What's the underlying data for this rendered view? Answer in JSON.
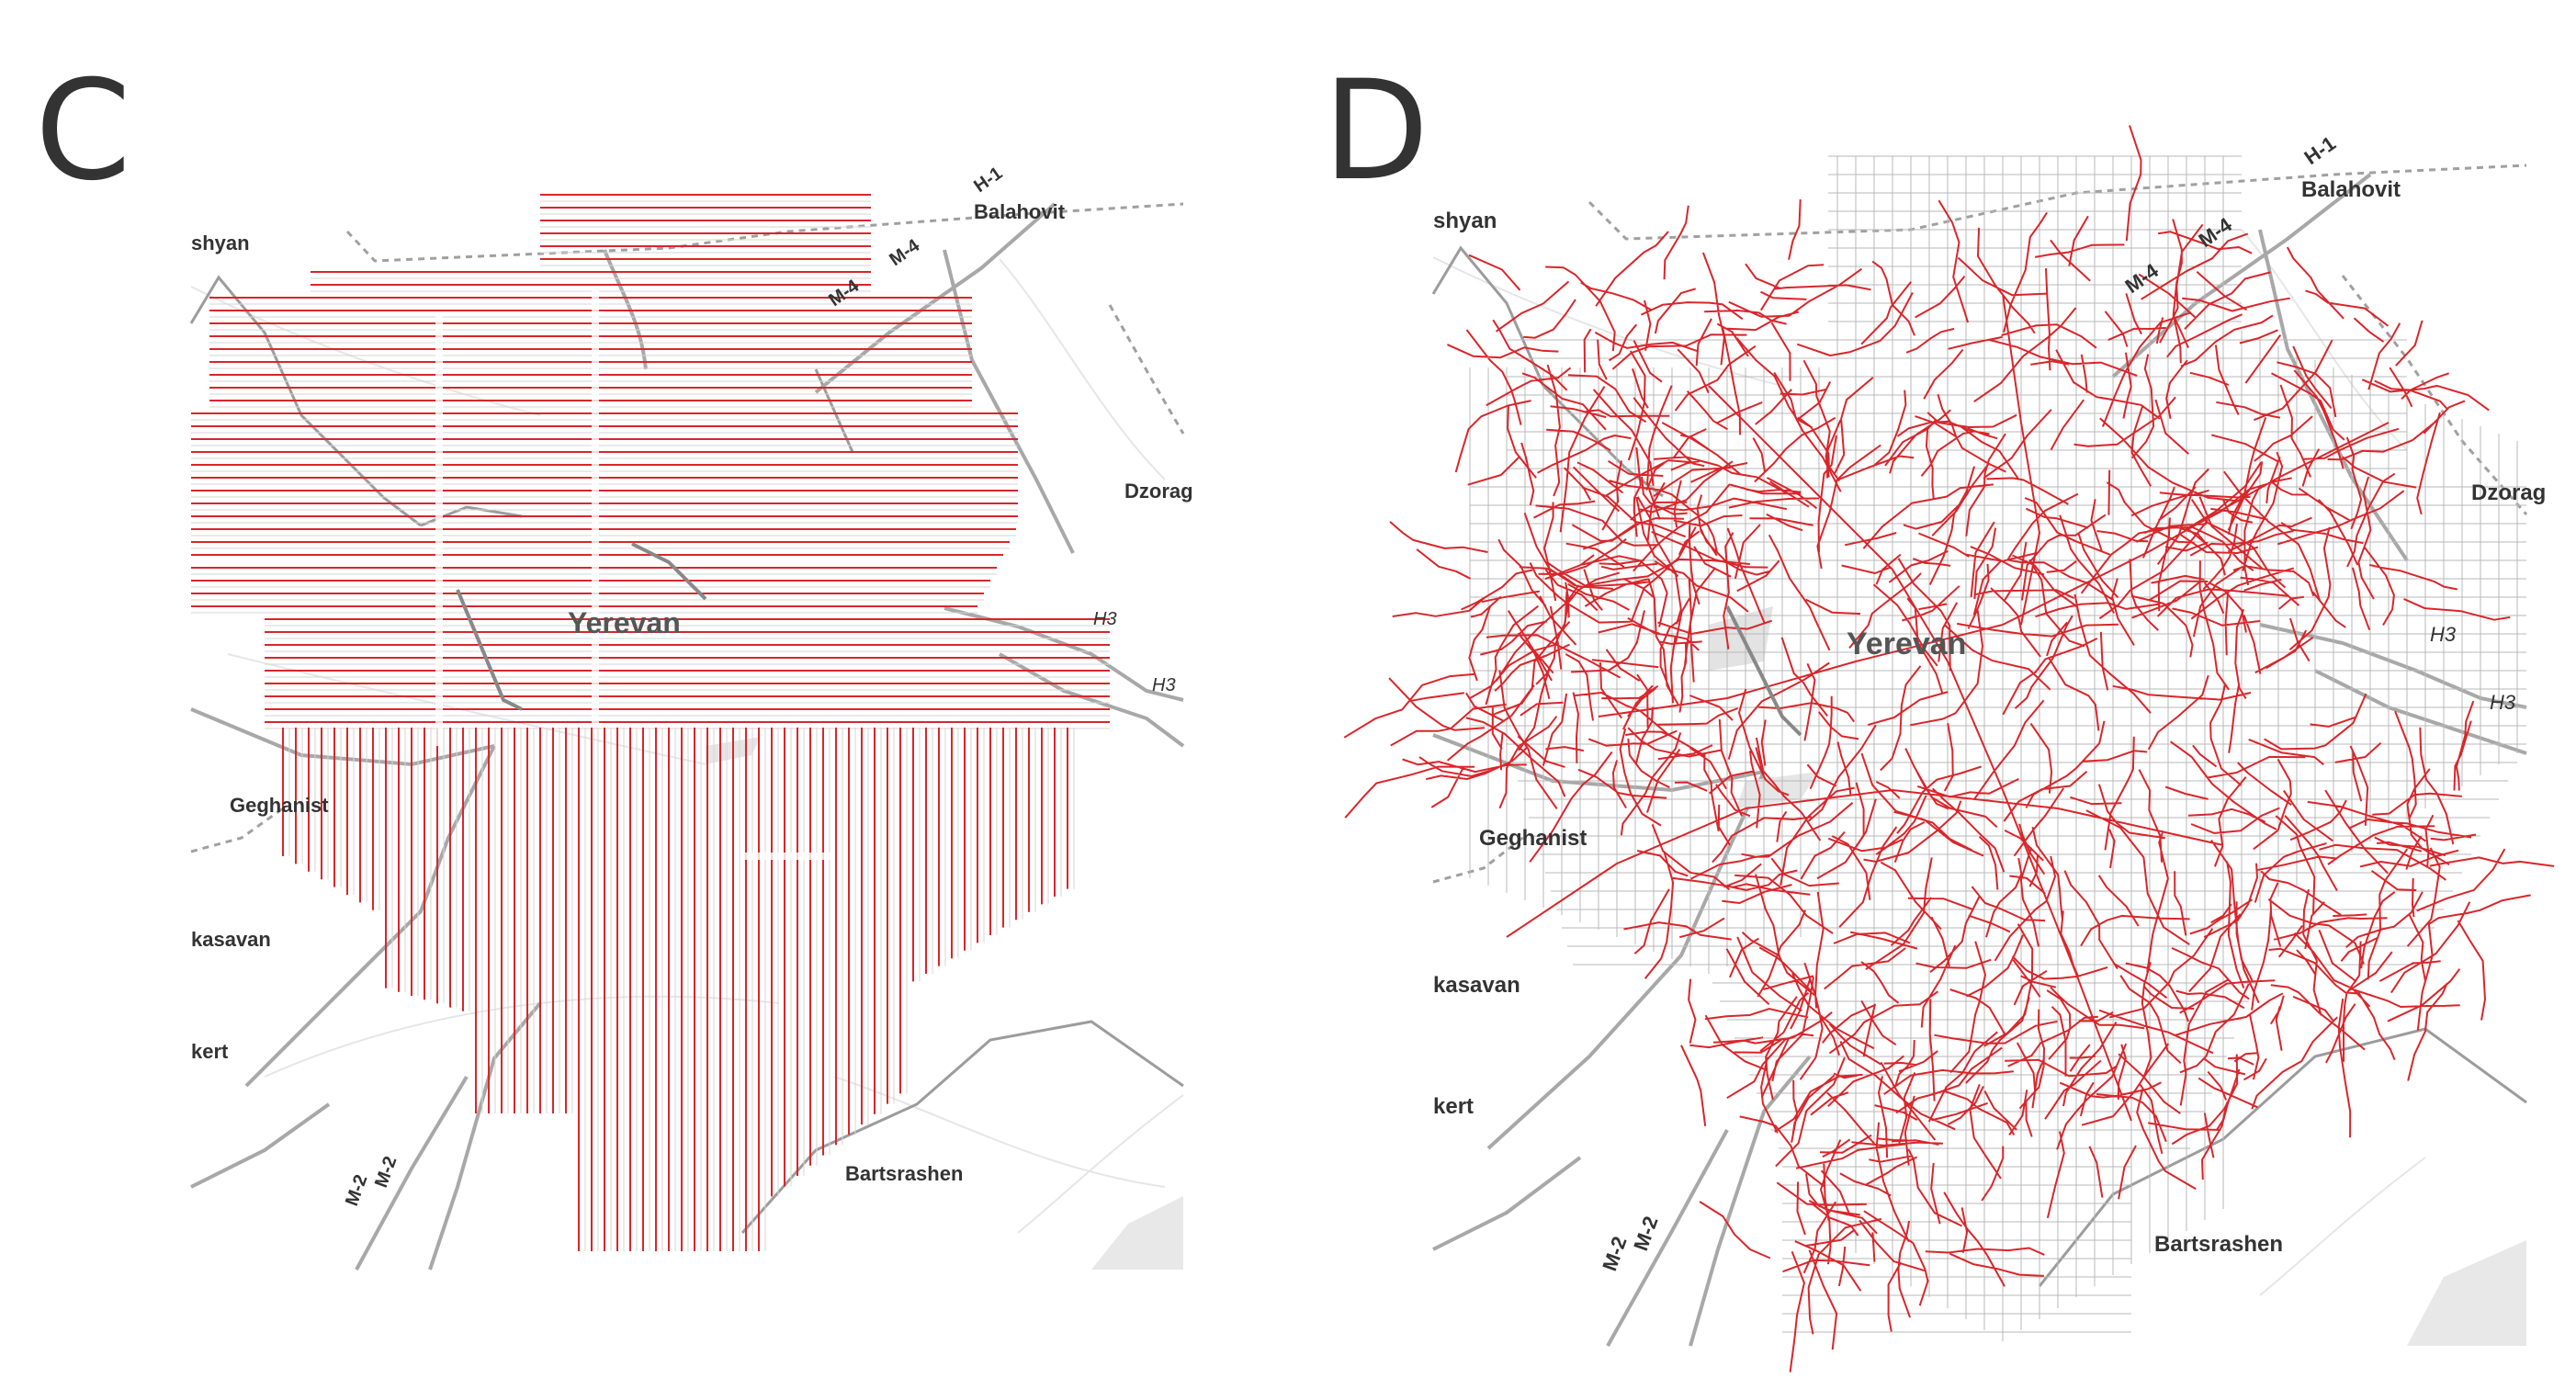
{
  "panels": [
    {
      "id": "C",
      "letter": "C",
      "labels": {
        "city": "Yerevan",
        "balahovit": "Balahovit",
        "dzorag": "Dzorag",
        "geghanist": "Geghanist",
        "kasavan": "kasavan",
        "kert": "kert",
        "bartsrashen": "Bartsrashen",
        "shyan": "shyan",
        "h1": "H-1",
        "m4a": "M-4",
        "m4b": "M-4",
        "h3a": "H3",
        "h3b": "H3",
        "m2a": "M-2",
        "m2b": "M-2"
      },
      "overlay": "regular grid of red line segments (horizontal in north, vertical in south)"
    },
    {
      "id": "D",
      "letter": "D",
      "labels": {
        "city": "Yerevan",
        "balahovit": "Balahovit",
        "dzorag": "Dzorag",
        "geghanist": "Geghanist",
        "kasavan": "kasavan",
        "kert": "kert",
        "bartsrashen": "Bartsrashen",
        "shyan": "shyan",
        "h1": "H-1",
        "m4a": "M-4",
        "m4b": "M-4",
        "h3a": "H3",
        "h3b": "H3",
        "m2a": "M-2",
        "m2b": "M-2"
      },
      "overlay": "grey square grid with red street network"
    }
  ],
  "colors": {
    "grid_red": "#d9262b",
    "grid_grey": "#b8b8b8",
    "road": "#aaaaaa",
    "border": "#a0a0a0",
    "label": "#333333"
  }
}
